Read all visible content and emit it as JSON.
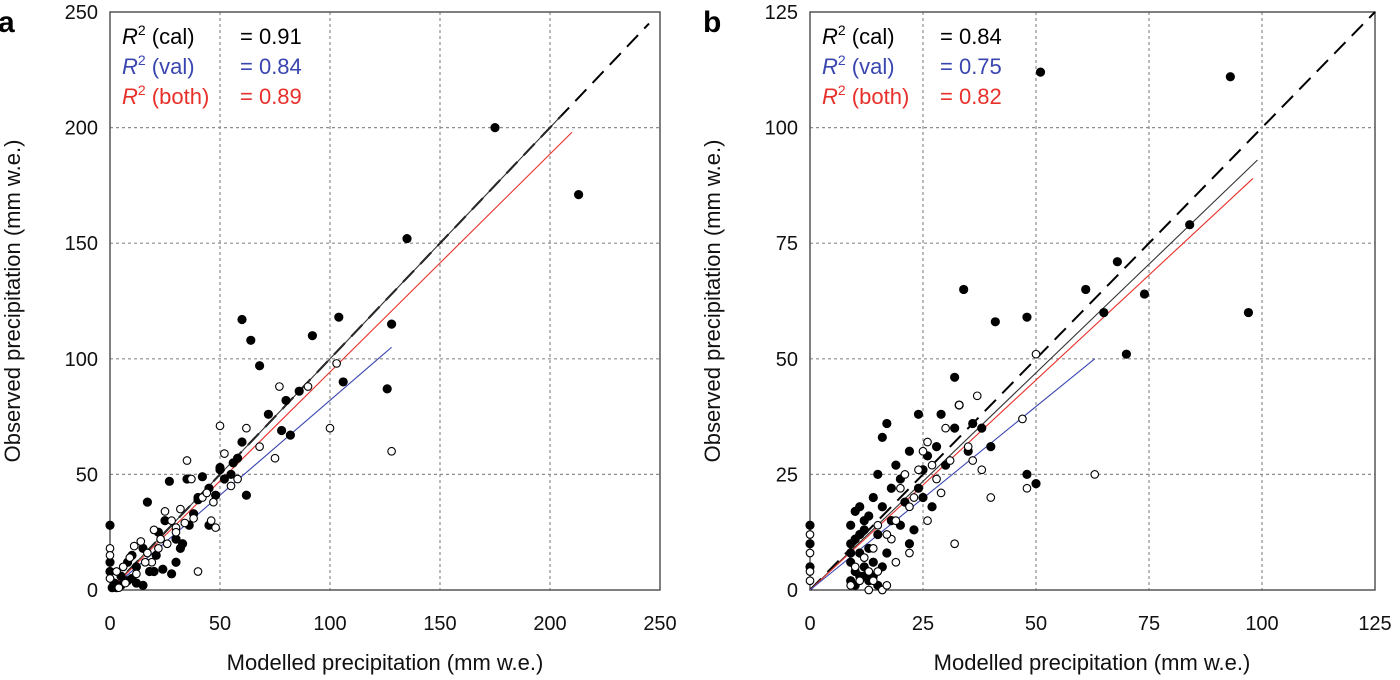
{
  "figure": {
    "panels": [
      "a",
      "b"
    ]
  },
  "chart_data": [
    {
      "panel": "a",
      "type": "scatter",
      "xlabel": "Modelled precipitation (mm w.e.)",
      "ylabel": "Observed precipitation (mm w.e.)",
      "xlim": [
        0,
        250
      ],
      "ylim": [
        0,
        250
      ],
      "xticks": [
        0,
        50,
        100,
        150,
        200,
        250
      ],
      "yticks": [
        0,
        50,
        100,
        150,
        200,
        250
      ],
      "grid": true,
      "r2": [
        {
          "label": "(cal)",
          "value": "= 0.91",
          "color": "#000000"
        },
        {
          "label": "(val)",
          "value": "= 0.84",
          "color": "#3a46b0"
        },
        {
          "label": "(both)",
          "value": "= 0.89",
          "color": "#e8302a"
        }
      ],
      "series": [
        {
          "name": "calibration",
          "marker": "filled",
          "points": [
            [
              0,
              28
            ],
            [
              0,
              12
            ],
            [
              0,
              8
            ],
            [
              2,
              3
            ],
            [
              5,
              6
            ],
            [
              8,
              12
            ],
            [
              10,
              15
            ],
            [
              12,
              10
            ],
            [
              15,
              18
            ],
            [
              17,
              38
            ],
            [
              20,
              8
            ],
            [
              22,
              25
            ],
            [
              25,
              30
            ],
            [
              27,
              47
            ],
            [
              30,
              22
            ],
            [
              32,
              18
            ],
            [
              35,
              48
            ],
            [
              38,
              33
            ],
            [
              40,
              40
            ],
            [
              42,
              49
            ],
            [
              45,
              28
            ],
            [
              48,
              41
            ],
            [
              50,
              53
            ],
            [
              52,
              48
            ],
            [
              55,
              50
            ],
            [
              58,
              57
            ],
            [
              60,
              64
            ],
            [
              62,
              41
            ],
            [
              60,
              117
            ],
            [
              64,
              108
            ],
            [
              68,
              97
            ],
            [
              72,
              76
            ],
            [
              78,
              69
            ],
            [
              80,
              82
            ],
            [
              82,
              67
            ],
            [
              86,
              86
            ],
            [
              92,
              110
            ],
            [
              104,
              118
            ],
            [
              106,
              90
            ],
            [
              126,
              87
            ],
            [
              128,
              115
            ],
            [
              135,
              152
            ],
            [
              175,
              200
            ],
            [
              213,
              171
            ],
            [
              10,
              5
            ],
            [
              12,
              3
            ],
            [
              15,
              2
            ],
            [
              18,
              8
            ],
            [
              21,
              15
            ],
            [
              24,
              9
            ],
            [
              28,
              7
            ],
            [
              30,
              12
            ],
            [
              33,
              20
            ],
            [
              36,
              28
            ],
            [
              40,
              39
            ],
            [
              45,
              44
            ],
            [
              50,
              52
            ],
            [
              56,
              55
            ],
            [
              8,
              4
            ],
            [
              5,
              2
            ],
            [
              3,
              1
            ],
            [
              1,
              1
            ]
          ]
        },
        {
          "name": "validation",
          "marker": "open",
          "points": [
            [
              0,
              18
            ],
            [
              0,
              15
            ],
            [
              0,
              5
            ],
            [
              3,
              8
            ],
            [
              6,
              10
            ],
            [
              9,
              14
            ],
            [
              11,
              19
            ],
            [
              14,
              21
            ],
            [
              17,
              16
            ],
            [
              19,
              12
            ],
            [
              20,
              26
            ],
            [
              23,
              22
            ],
            [
              25,
              34
            ],
            [
              28,
              30
            ],
            [
              30,
              27
            ],
            [
              32,
              35
            ],
            [
              34,
              29
            ],
            [
              35,
              56
            ],
            [
              37,
              48
            ],
            [
              38,
              31
            ],
            [
              40,
              8
            ],
            [
              42,
              40
            ],
            [
              46,
              30
            ],
            [
              48,
              27
            ],
            [
              50,
              71
            ],
            [
              52,
              59
            ],
            [
              55,
              45
            ],
            [
              58,
              48
            ],
            [
              62,
              70
            ],
            [
              68,
              62
            ],
            [
              75,
              57
            ],
            [
              77,
              88
            ],
            [
              90,
              88
            ],
            [
              100,
              70
            ],
            [
              103,
              98
            ],
            [
              128,
              60
            ],
            [
              4,
              1
            ],
            [
              7,
              3
            ],
            [
              12,
              7
            ],
            [
              16,
              12
            ],
            [
              22,
              18
            ],
            [
              26,
              20
            ],
            [
              30,
              25
            ],
            [
              44,
              42
            ],
            [
              47,
              38
            ]
          ]
        }
      ],
      "lines": [
        {
          "name": "1:1",
          "style": "dashed",
          "color": "#000000",
          "from": [
            0,
            0
          ],
          "to": [
            245,
            245
          ]
        },
        {
          "name": "cal fit",
          "color": "#333333",
          "from": [
            0,
            0
          ],
          "to": [
            205,
            205
          ]
        },
        {
          "name": "both fit",
          "color": "#e8302a",
          "from": [
            0,
            0
          ],
          "to": [
            210,
            198
          ]
        },
        {
          "name": "val fit",
          "color": "#3a46b0",
          "from": [
            0,
            0
          ],
          "to": [
            128,
            105
          ]
        }
      ]
    },
    {
      "panel": "b",
      "type": "scatter",
      "xlabel": "Modelled precipitation (mm w.e.)",
      "ylabel": "Observed precipitation (mm w.e.)",
      "xlim": [
        0,
        125
      ],
      "ylim": [
        0,
        125
      ],
      "xticks": [
        0,
        25,
        50,
        75,
        100,
        125
      ],
      "yticks": [
        0,
        25,
        50,
        75,
        100,
        125
      ],
      "grid": true,
      "r2": [
        {
          "label": "(cal)",
          "value": "= 0.84",
          "color": "#000000"
        },
        {
          "label": "(val)",
          "value": "= 0.75",
          "color": "#3a46b0"
        },
        {
          "label": "(both)",
          "value": "= 0.82",
          "color": "#e8302a"
        }
      ],
      "series": [
        {
          "name": "calibration",
          "marker": "filled",
          "points": [
            [
              0,
              14
            ],
            [
              0,
              10
            ],
            [
              0,
              5
            ],
            [
              9,
              2
            ],
            [
              9,
              6
            ],
            [
              9,
              10
            ],
            [
              9,
              14
            ],
            [
              10,
              17
            ],
            [
              10,
              4
            ],
            [
              11,
              8
            ],
            [
              11,
              12
            ],
            [
              12,
              15
            ],
            [
              12,
              3
            ],
            [
              13,
              9
            ],
            [
              14,
              20
            ],
            [
              14,
              6
            ],
            [
              15,
              25
            ],
            [
              15,
              12
            ],
            [
              16,
              33
            ],
            [
              16,
              18
            ],
            [
              17,
              36
            ],
            [
              17,
              8
            ],
            [
              18,
              22
            ],
            [
              18,
              15
            ],
            [
              19,
              27
            ],
            [
              20,
              24
            ],
            [
              21,
              19
            ],
            [
              22,
              30
            ],
            [
              22,
              10
            ],
            [
              24,
              38
            ],
            [
              24,
              22
            ],
            [
              25,
              26
            ],
            [
              26,
              29
            ],
            [
              27,
              18
            ],
            [
              28,
              31
            ],
            [
              29,
              38
            ],
            [
              30,
              27
            ],
            [
              32,
              46
            ],
            [
              32,
              35
            ],
            [
              33,
              40
            ],
            [
              35,
              30
            ],
            [
              36,
              36
            ],
            [
              38,
              35
            ],
            [
              40,
              31
            ],
            [
              34,
              65
            ],
            [
              41,
              58
            ],
            [
              48,
              59
            ],
            [
              48,
              25
            ],
            [
              50,
              23
            ],
            [
              51,
              112
            ],
            [
              61,
              65
            ],
            [
              65,
              60
            ],
            [
              68,
              71
            ],
            [
              70,
              51
            ],
            [
              74,
              64
            ],
            [
              84,
              79
            ],
            [
              93,
              111
            ],
            [
              97,
              60
            ],
            [
              10,
              1
            ],
            [
              11,
              3
            ],
            [
              12,
              5
            ],
            [
              13,
              2
            ],
            [
              14,
              3
            ],
            [
              15,
              1
            ],
            [
              16,
              5
            ],
            [
              12,
              13
            ],
            [
              10,
              11
            ],
            [
              9,
              8
            ],
            [
              11,
              18
            ],
            [
              13,
              16
            ],
            [
              20,
              14
            ],
            [
              23,
              13
            ],
            [
              25,
              20
            ]
          ]
        },
        {
          "name": "validation",
          "marker": "open",
          "points": [
            [
              0,
              12
            ],
            [
              0,
              8
            ],
            [
              0,
              4
            ],
            [
              0,
              2
            ],
            [
              9,
              1
            ],
            [
              10,
              5
            ],
            [
              11,
              2
            ],
            [
              12,
              7
            ],
            [
              13,
              4
            ],
            [
              14,
              9
            ],
            [
              15,
              14
            ],
            [
              16,
              0
            ],
            [
              17,
              1
            ],
            [
              18,
              11
            ],
            [
              19,
              15
            ],
            [
              20,
              22
            ],
            [
              21,
              25
            ],
            [
              22,
              18
            ],
            [
              23,
              20
            ],
            [
              24,
              26
            ],
            [
              25,
              30
            ],
            [
              26,
              32
            ],
            [
              27,
              27
            ],
            [
              28,
              24
            ],
            [
              29,
              21
            ],
            [
              30,
              35
            ],
            [
              31,
              28
            ],
            [
              32,
              10
            ],
            [
              33,
              40
            ],
            [
              35,
              31
            ],
            [
              36,
              28
            ],
            [
              37,
              42
            ],
            [
              40,
              20
            ],
            [
              47,
              37
            ],
            [
              48,
              22
            ],
            [
              50,
              51
            ],
            [
              63,
              25
            ],
            [
              38,
              26
            ],
            [
              26,
              15
            ],
            [
              22,
              8
            ],
            [
              19,
              6
            ],
            [
              17,
              12
            ],
            [
              15,
              4
            ],
            [
              14,
              2
            ],
            [
              13,
              0
            ]
          ]
        }
      ],
      "lines": [
        {
          "name": "1:1",
          "style": "dashed",
          "color": "#000000",
          "from": [
            0,
            0
          ],
          "to": [
            125,
            125
          ]
        },
        {
          "name": "cal fit",
          "color": "#333333",
          "from": [
            0,
            0
          ],
          "to": [
            99,
            93
          ]
        },
        {
          "name": "both fit",
          "color": "#e8302a",
          "from": [
            0,
            0
          ],
          "to": [
            98,
            89
          ]
        },
        {
          "name": "val fit",
          "color": "#3a46b0",
          "from": [
            0,
            0
          ],
          "to": [
            63,
            50
          ]
        }
      ]
    }
  ]
}
